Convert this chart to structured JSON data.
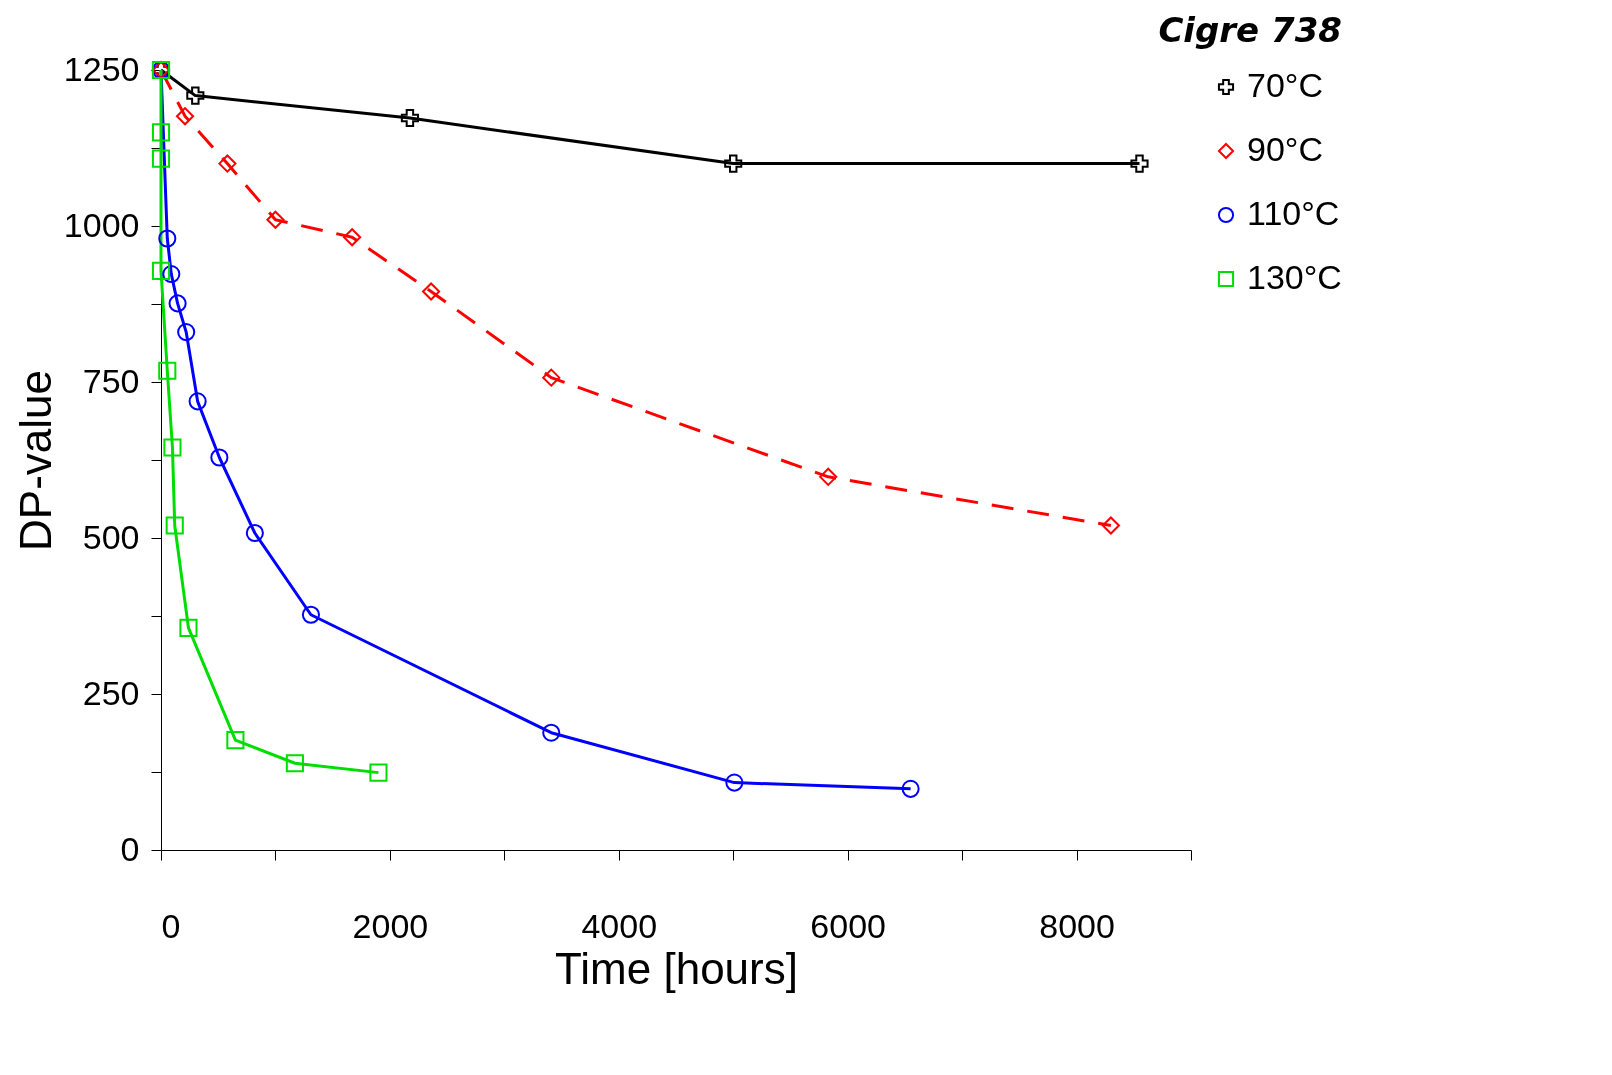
{
  "chart_data": {
    "type": "line",
    "annotations": [
      "Cigre 738"
    ],
    "xlabel": "Time [hours]",
    "ylabel": "DP-value",
    "xlim": [
      0,
      9000
    ],
    "xticks": [
      0,
      {
        "value": 1000,
        "label": null
      },
      2000,
      {
        "value": 3000,
        "label": null
      },
      4000,
      {
        "value": 5000,
        "label": null
      },
      6000,
      {
        "value": 7000,
        "label": null
      },
      8000,
      {
        "value": 9000,
        "label": null
      }
    ],
    "ylim": [
      0,
      1250
    ],
    "yticks": [
      0,
      {
        "value": 125,
        "label": null
      },
      250,
      {
        "value": 375,
        "label": null
      },
      500,
      {
        "value": 625,
        "label": null
      },
      750,
      {
        "value": 875,
        "label": null
      },
      1000,
      {
        "value": 1125,
        "label": null
      },
      1250
    ],
    "grid": false,
    "legend": "right",
    "series": [
      {
        "name": "70°C",
        "color": "#000000",
        "marker": "cross",
        "line_style": "solid",
        "x": [
          0,
          300,
          2175,
          5000,
          8550
        ],
        "values": [
          1250,
          1209,
          1173,
          1100,
          1100
        ]
      },
      {
        "name": "90°C",
        "color": "#ff0000",
        "marker": "diamond",
        "line_style": "dashed",
        "x": [
          0,
          210,
          580,
          1000,
          1670,
          2360,
          3410,
          5830,
          8300
        ],
        "values": [
          1250,
          1176,
          1100,
          1010,
          982,
          895,
          757,
          598,
          520
        ]
      },
      {
        "name": "110°C",
        "color": "#0000ff",
        "marker": "circle",
        "line_style": "solid",
        "x": [
          0,
          55,
          90,
          145,
          220,
          320,
          510,
          820,
          1310,
          3410,
          5010,
          6550
        ],
        "values": [
          1250,
          980,
          923,
          876,
          830,
          719,
          629,
          508,
          377,
          188,
          108,
          98
        ]
      },
      {
        "name": "130°C",
        "color": "#00dd00",
        "marker": "square",
        "line_style": "solid",
        "x": [
          0,
          0,
          0,
          0,
          55,
          100,
          120,
          240,
          650,
          1170,
          1900
        ],
        "values": [
          1250,
          1150,
          1108,
          928,
          768,
          645,
          520,
          356,
          176,
          139,
          124
        ]
      }
    ]
  }
}
